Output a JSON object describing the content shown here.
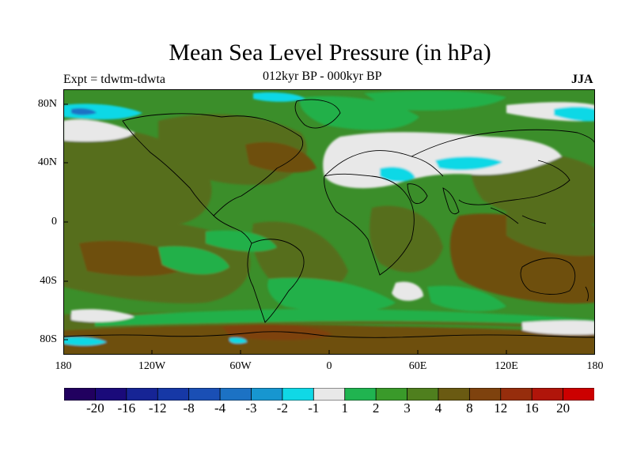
{
  "title": "Mean Sea Level Pressure (in hPa)",
  "left_label": "Expt = tdwtm-tdwta",
  "subtitle": "012kyr BP - 000kyr BP",
  "season": "JJA",
  "lat_labels": [
    "80N",
    "40N",
    "0",
    "40S",
    "80S"
  ],
  "lon_labels": [
    "180",
    "120W",
    "60W",
    "0",
    "60E",
    "120E",
    "180"
  ],
  "colorbar": {
    "labels": [
      "-20",
      "-16",
      "-12",
      "-8",
      "-4",
      "-3",
      "-2",
      "-1",
      "1",
      "2",
      "3",
      "4",
      "8",
      "12",
      "16",
      "20"
    ],
    "colors": [
      "#21005f",
      "#1a0a7a",
      "#162495",
      "#1638a6",
      "#1a4fb5",
      "#1c72c4",
      "#1796d0",
      "#10d8e6",
      "#e8e8e8",
      "#20b450",
      "#3a9a2a",
      "#4f7f1e",
      "#6a5a12",
      "#7e420e",
      "#962d0c",
      "#b0150a",
      "#cc0000"
    ]
  },
  "colors": {
    "green": "#24b04a",
    "mid_green": "#3b8e2a",
    "olive": "#566e1c",
    "brown": "#6e4f11",
    "grey": "#e8e8e8",
    "cyan": "#10d8e6",
    "blue": "#1c72c4"
  }
}
